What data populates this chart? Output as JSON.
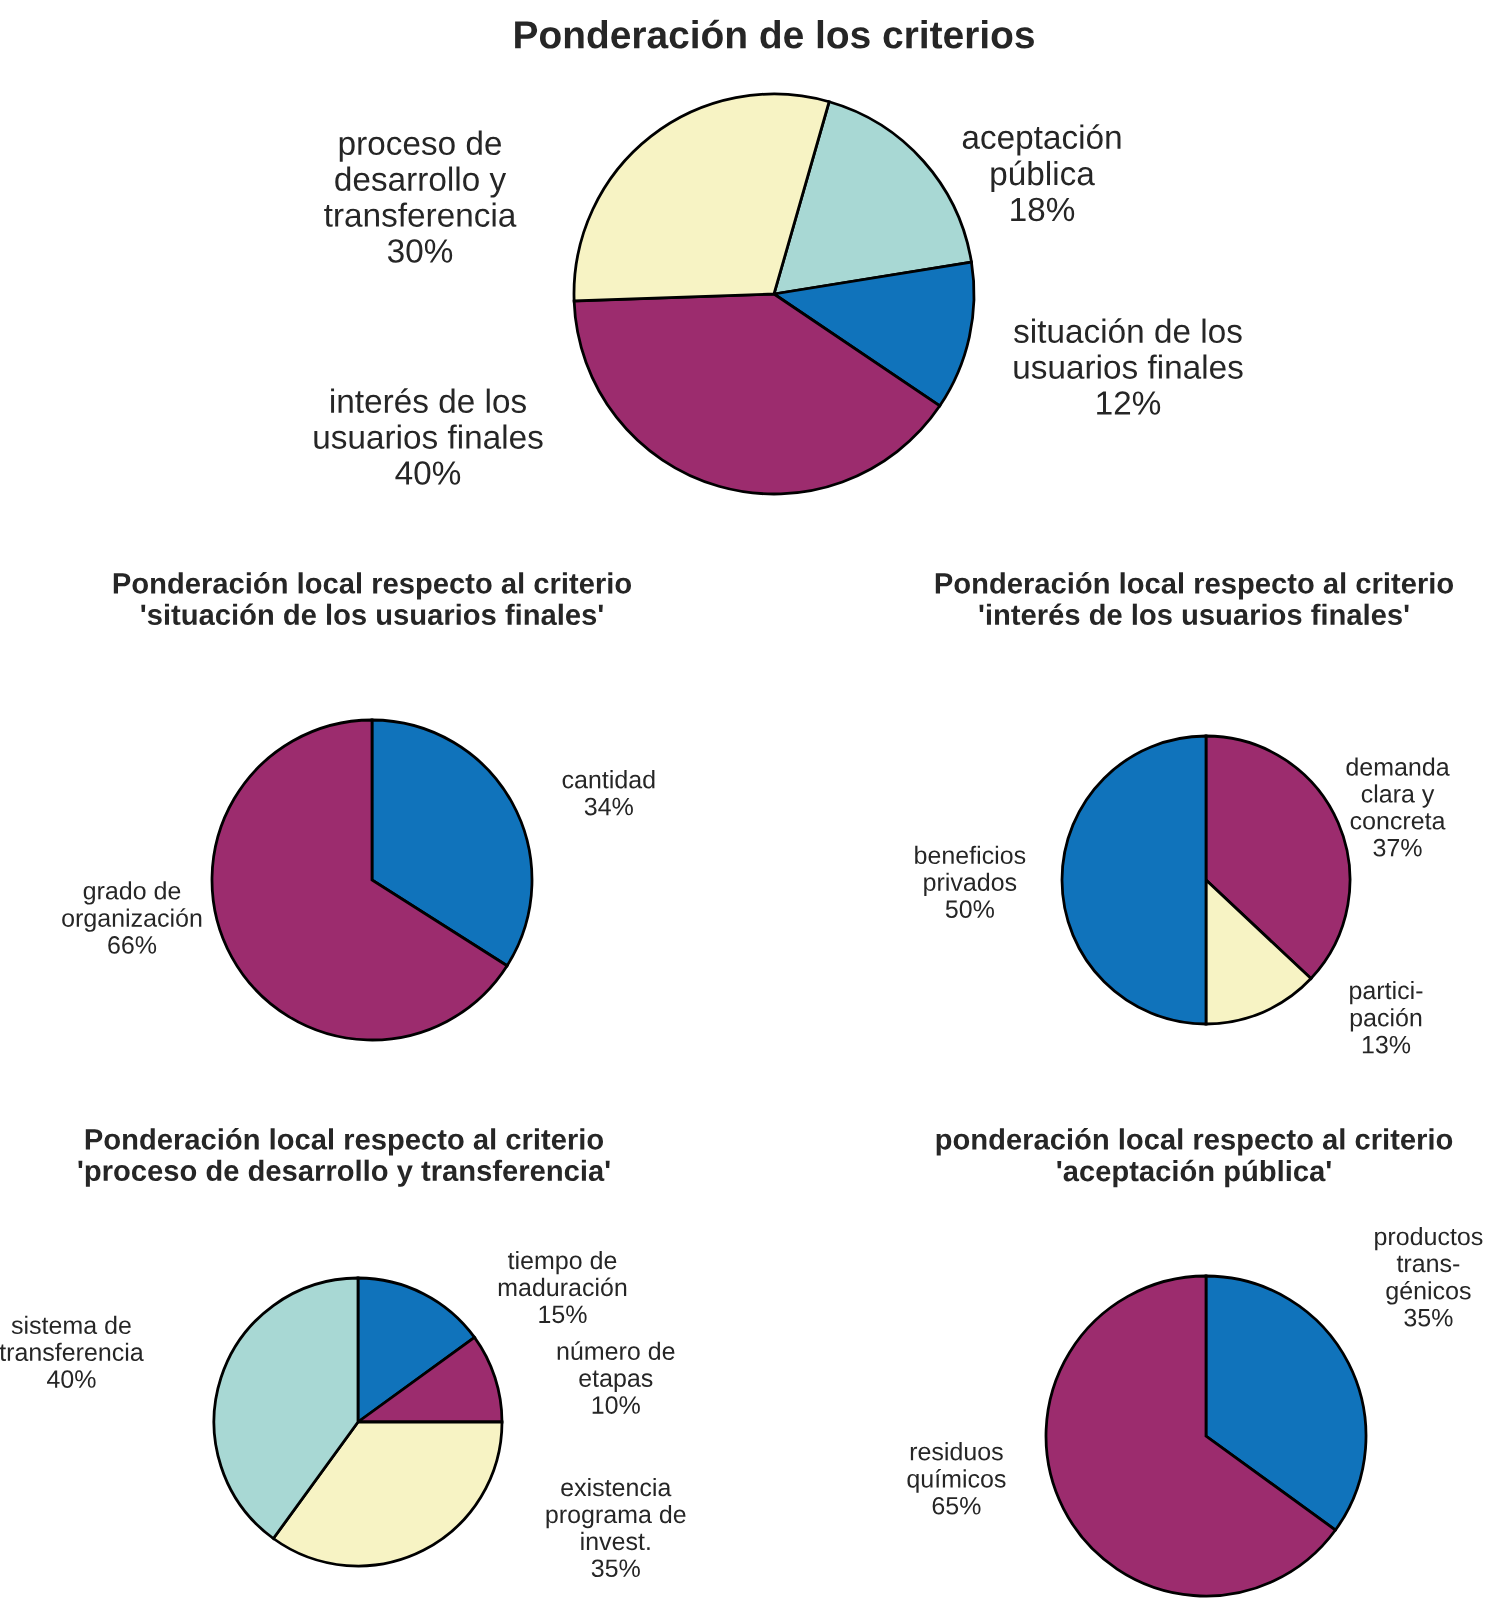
{
  "chart_data": [
    {
      "type": "pie",
      "title": "Ponderación de los criterios",
      "categories": [
        "aceptación\npública",
        "situación de los\nusuarios finales",
        "interés de los\nusuarios finales",
        "proceso de\ndesarrollo y\ntransferencia"
      ],
      "values": [
        18,
        12,
        40,
        30
      ],
      "value_labels": [
        "18%",
        "12%",
        "40%",
        "30%"
      ],
      "colors": [
        "#a8d8d4",
        "#1073bb",
        "#9c2c6e",
        "#f7f3c4"
      ]
    },
    {
      "type": "pie",
      "title": "Ponderación local respecto al criterio\n'situación de los usuarios finales'",
      "categories": [
        "cantidad",
        "grado de\norganización"
      ],
      "values": [
        34,
        66
      ],
      "value_labels": [
        "34%",
        "66%"
      ],
      "colors": [
        "#1073bb",
        "#9c2c6e"
      ]
    },
    {
      "type": "pie",
      "title": "Ponderación local respecto al criterio\n'interés de los usuarios finales'",
      "categories": [
        "demanda\nclara y\nconcreta",
        "partici-\npación",
        "beneficios\nprivados"
      ],
      "values": [
        37,
        13,
        50
      ],
      "value_labels": [
        "37%",
        "13%",
        "50%"
      ],
      "colors": [
        "#9c2c6e",
        "#f7f3c4",
        "#1073bb"
      ]
    },
    {
      "type": "pie",
      "title": "Ponderación local respecto al criterio\n'proceso de desarrollo y transferencia'",
      "categories": [
        "tiempo de\nmaduración",
        "número de\netapas",
        "existencia\nprograma de\ninvest.",
        "sistema de\ntransferencia"
      ],
      "values": [
        15,
        10,
        35,
        40
      ],
      "value_labels": [
        "15%",
        "10%",
        "35%",
        "40%"
      ],
      "colors": [
        "#1073bb",
        "#9c2c6e",
        "#f7f3c4",
        "#a8d8d4"
      ]
    },
    {
      "type": "pie",
      "title": "ponderación local respecto al criterio\n'aceptación pública'",
      "categories": [
        "productos\ntrans-\ngénicos",
        "residuos\nquímicos"
      ],
      "values": [
        35,
        65
      ],
      "value_labels": [
        "35%",
        "65%"
      ],
      "colors": [
        "#1073bb",
        "#9c2c6e"
      ]
    }
  ]
}
